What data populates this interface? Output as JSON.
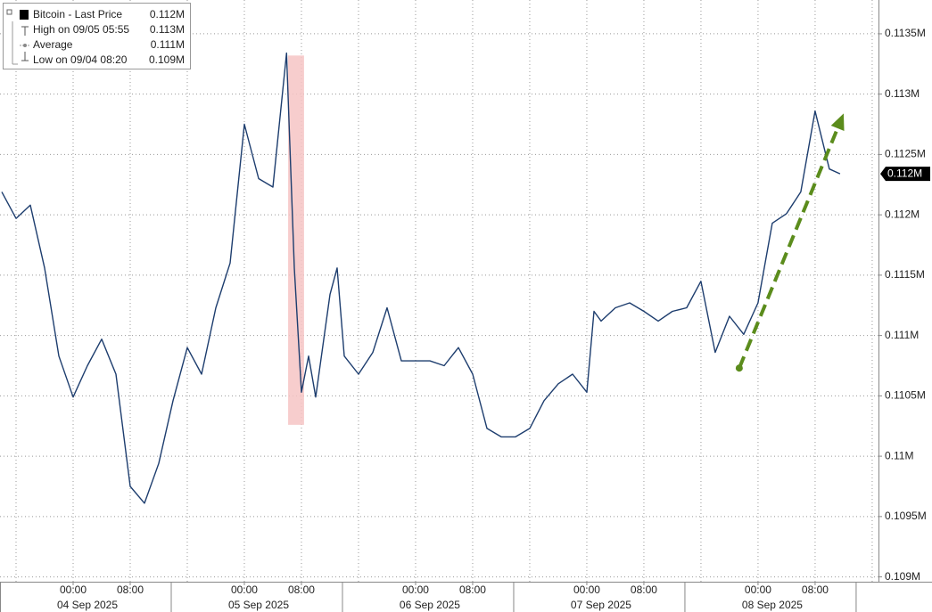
{
  "chart_data": {
    "type": "line",
    "series": [
      {
        "name": "Bitcoin - Last Price",
        "color": "#1d3d6e",
        "last_label": "0.112M",
        "x": [
          "2025-09-03T14:00Z",
          "2025-09-03T16:00Z",
          "2025-09-03T18:00Z",
          "2025-09-03T20:00Z",
          "2025-09-03T22:00Z",
          "2025-09-04T00:00Z",
          "2025-09-04T02:00Z",
          "2025-09-04T04:00Z",
          "2025-09-04T06:00Z",
          "2025-09-04T08:00Z",
          "2025-09-04T10:00Z",
          "2025-09-04T12:00Z",
          "2025-09-04T14:00Z",
          "2025-09-04T16:00Z",
          "2025-09-04T18:00Z",
          "2025-09-04T20:00Z",
          "2025-09-04T22:00Z",
          "2025-09-05T00:00Z",
          "2025-09-05T02:00Z",
          "2025-09-05T04:00Z",
          "2025-09-05T05:55Z",
          "2025-09-05T06:00Z",
          "2025-09-05T07:00Z",
          "2025-09-05T08:00Z",
          "2025-09-05T09:00Z",
          "2025-09-05T10:00Z",
          "2025-09-05T12:00Z",
          "2025-09-05T13:00Z",
          "2025-09-05T14:00Z",
          "2025-09-05T16:00Z",
          "2025-09-05T18:00Z",
          "2025-09-05T20:00Z",
          "2025-09-05T22:00Z",
          "2025-09-06T00:00Z",
          "2025-09-06T02:00Z",
          "2025-09-06T04:00Z",
          "2025-09-06T06:00Z",
          "2025-09-06T08:00Z",
          "2025-09-06T10:00Z",
          "2025-09-06T12:00Z",
          "2025-09-06T14:00Z",
          "2025-09-06T16:00Z",
          "2025-09-06T18:00Z",
          "2025-09-06T20:00Z",
          "2025-09-06T22:00Z",
          "2025-09-07T00:00Z",
          "2025-09-07T01:00Z",
          "2025-09-07T02:00Z",
          "2025-09-07T04:00Z",
          "2025-09-07T06:00Z",
          "2025-09-07T08:00Z",
          "2025-09-07T10:00Z",
          "2025-09-07T12:00Z",
          "2025-09-07T14:00Z",
          "2025-09-07T16:00Z",
          "2025-09-07T18:00Z",
          "2025-09-07T20:00Z",
          "2025-09-07T22:00Z",
          "2025-09-08T00:00Z",
          "2025-09-08T02:00Z",
          "2025-09-08T04:00Z",
          "2025-09-08T06:00Z",
          "2025-09-08T08:00Z",
          "2025-09-08T10:00Z",
          "2025-09-08T11:30Z"
        ],
        "values": [
          0.11219,
          0.11197,
          0.11208,
          0.11156,
          0.11083,
          0.11049,
          0.11075,
          0.11097,
          0.11068,
          0.10975,
          0.10961,
          0.10994,
          0.11046,
          0.1109,
          0.11068,
          0.11123,
          0.1116,
          0.11275,
          0.1123,
          0.11223,
          0.11334,
          0.11319,
          0.11156,
          0.11053,
          0.11083,
          0.11049,
          0.11134,
          0.11156,
          0.11083,
          0.11068,
          0.11086,
          0.11123,
          0.11079,
          0.11079,
          0.11079,
          0.11075,
          0.1109,
          0.11068,
          0.11023,
          0.11016,
          0.11016,
          0.11023,
          0.11046,
          0.1106,
          0.11068,
          0.11053,
          0.1112,
          0.11112,
          0.11123,
          0.11127,
          0.1112,
          0.11112,
          0.1112,
          0.11123,
          0.11145,
          0.11086,
          0.11116,
          0.11101,
          0.11127,
          0.11193,
          0.11201,
          0.11219,
          0.11286,
          0.11238,
          0.11234
        ]
      }
    ],
    "stats": [
      {
        "name": "High on 09/05 05:55",
        "label": "0.113M"
      },
      {
        "name": "Average",
        "label": "0.111M"
      },
      {
        "name": "Low on 09/04 08:20",
        "label": "0.109M"
      }
    ],
    "xlim": [
      "2025-09-03T13:45Z",
      "2025-09-08T16:53Z"
    ],
    "ylim": [
      0.10896,
      0.11378
    ],
    "yticks": [
      {
        "value": 0.109,
        "label": "0.109M"
      },
      {
        "value": 0.1095,
        "label": "0.1095M"
      },
      {
        "value": 0.11,
        "label": "0.11M"
      },
      {
        "value": 0.1105,
        "label": "0.1105M"
      },
      {
        "value": 0.111,
        "label": "0.111M"
      },
      {
        "value": 0.1115,
        "label": "0.1115M"
      },
      {
        "value": 0.112,
        "label": "0.112M"
      },
      {
        "value": 0.1125,
        "label": "0.1125M"
      },
      {
        "value": 0.113,
        "label": "0.113M"
      },
      {
        "value": 0.1135,
        "label": "0.1135M"
      }
    ],
    "xticks": [
      {
        "value": "2025-09-04T00:00Z",
        "label": "00:00"
      },
      {
        "value": "2025-09-04T08:00Z",
        "label": "08:00"
      },
      {
        "value": "2025-09-05T00:00Z",
        "label": "00:00"
      },
      {
        "value": "2025-09-05T08:00Z",
        "label": "08:00"
      },
      {
        "value": "2025-09-06T00:00Z",
        "label": "00:00"
      },
      {
        "value": "2025-09-06T08:00Z",
        "label": "08:00"
      },
      {
        "value": "2025-09-07T00:00Z",
        "label": "00:00"
      },
      {
        "value": "2025-09-07T08:00Z",
        "label": "08:00"
      },
      {
        "value": "2025-09-08T00:00Z",
        "label": "00:00"
      },
      {
        "value": "2025-09-08T08:00Z",
        "label": "08:00"
      }
    ],
    "xgrid_minor": [
      "2025-09-03T16:00Z",
      "2025-09-04T16:00Z",
      "2025-09-05T16:00Z",
      "2025-09-06T16:00Z",
      "2025-09-07T16:00Z",
      "2025-09-08T16:00Z"
    ],
    "x_dates": [
      {
        "value": "2025-09-04T00:00Z",
        "label": "04 Sep 2025"
      },
      {
        "value": "2025-09-05T00:00Z",
        "label": "05 Sep 2025"
      },
      {
        "value": "2025-09-06T00:00Z",
        "label": "06 Sep 2025"
      },
      {
        "value": "2025-09-07T00:00Z",
        "label": "07 Sep 2025"
      },
      {
        "value": "2025-09-08T00:00Z",
        "label": "08 Sep 2025"
      }
    ],
    "grid": true,
    "highlight": {
      "x": [
        "2025-09-05T06:08Z",
        "2025-09-05T08:22Z"
      ],
      "y": [
        0.11026,
        0.11332
      ],
      "color": "#f6c4c4"
    },
    "arrow": {
      "x": [
        "2025-09-07T21:22Z",
        "2025-09-08T12:00Z"
      ],
      "y": [
        0.11073,
        0.11284
      ],
      "color": "#5b8c1c"
    }
  }
}
